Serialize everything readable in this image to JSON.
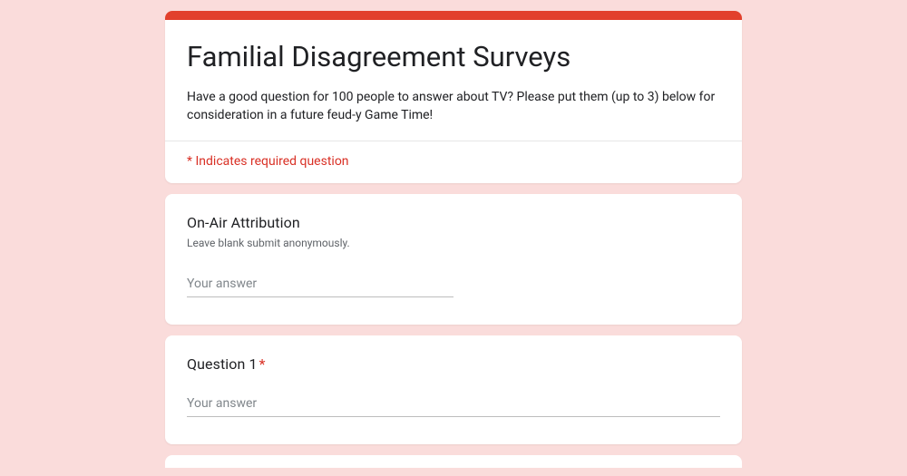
{
  "colors": {
    "accent": "#e2402c",
    "required": "#d93025",
    "page_bg": "#fadcdb",
    "card_bg": "#ffffff",
    "text": "#202124",
    "subtext": "#5f6368",
    "placeholder": "#80868b",
    "underline": "#bdbdbd",
    "divider": "#e6e6e6"
  },
  "header": {
    "title": "Familial Disagreement Surveys",
    "description": "Have a good question for 100 people to answer about TV? Please put them (up to 3) below for consideration in a future feud-y Game Time!",
    "required_note": "* Indicates required question"
  },
  "questions": {
    "q_attribution": {
      "title": "On-Air Attribution",
      "subtitle": "Leave blank submit anonymously.",
      "placeholder": "Your answer",
      "required": false
    },
    "q_1": {
      "title": "Question 1",
      "placeholder": "Your answer",
      "required": true,
      "star": "*"
    }
  }
}
